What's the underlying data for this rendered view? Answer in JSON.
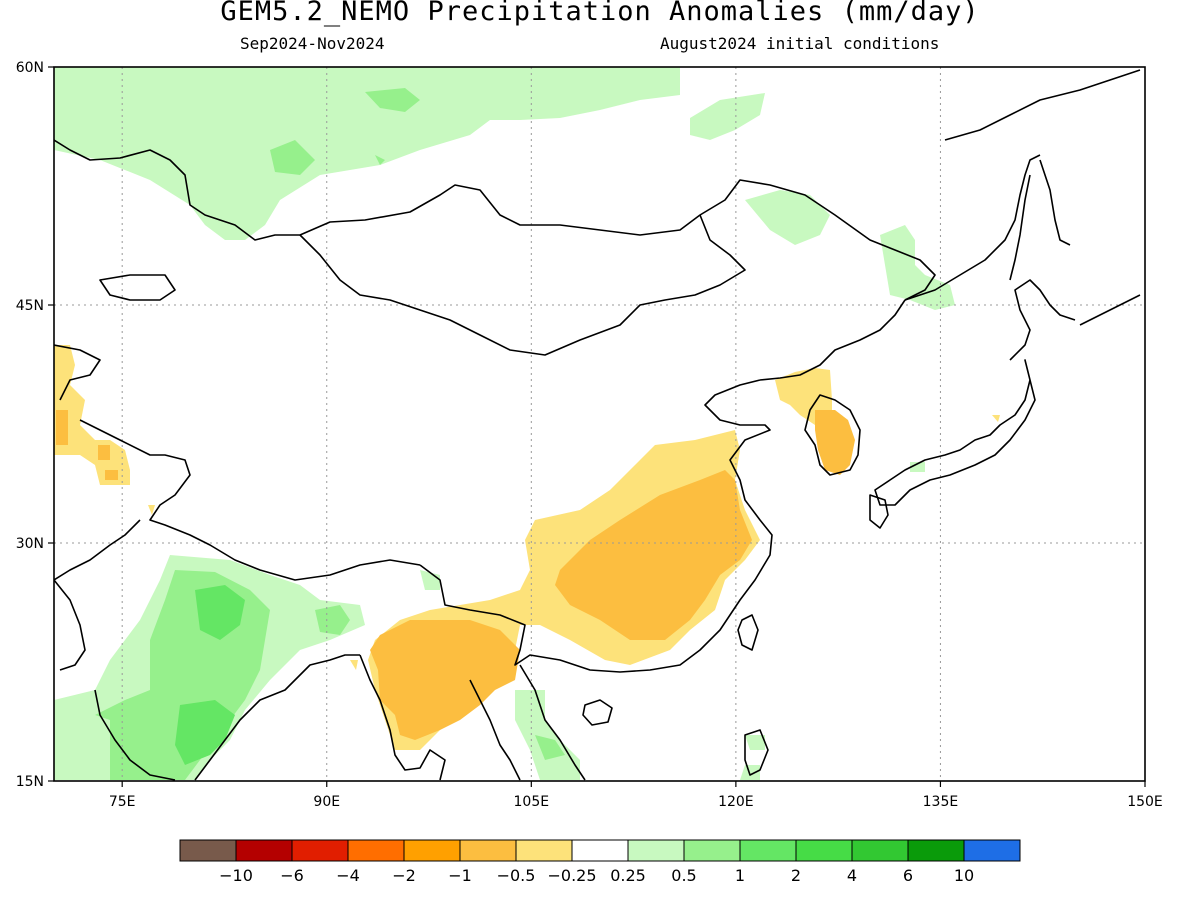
{
  "header": {
    "title": "GEM5.2_NEMO Precipitation Anomalies (mm/day)",
    "period": "Sep2024-Nov2024",
    "initial": "August2024 initial conditions"
  },
  "map": {
    "lon_range": [
      70,
      150
    ],
    "lat_range": [
      15,
      60
    ],
    "lon_ticks": [
      {
        "value": 75,
        "label": "75E"
      },
      {
        "value": 90,
        "label": "90E"
      },
      {
        "value": 105,
        "label": "105E"
      },
      {
        "value": 120,
        "label": "120E"
      },
      {
        "value": 135,
        "label": "135E"
      },
      {
        "value": 150,
        "label": "150E"
      }
    ],
    "lat_ticks": [
      {
        "value": 60,
        "label": "60N"
      },
      {
        "value": 45,
        "label": "45N"
      },
      {
        "value": 30,
        "label": "30N"
      },
      {
        "value": 15,
        "label": "15N"
      }
    ],
    "colors": {
      "pos_light": "#c8f9c0",
      "pos_mid": "#96f08c",
      "pos_strong": "#64e664",
      "neg_light": "#fde27a",
      "neg_mid": "#fcbe40",
      "coast": "#000000",
      "grid": "#999999"
    }
  },
  "legend": {
    "bins": [
      {
        "color": "#785a4b"
      },
      {
        "color": "#b40000"
      },
      {
        "color": "#e11e00"
      },
      {
        "color": "#ff6e00"
      },
      {
        "color": "#ffa000"
      },
      {
        "color": "#fcbe40"
      },
      {
        "color": "#fde27a"
      },
      {
        "color": "#ffffff"
      },
      {
        "color": "#c8f9c0"
      },
      {
        "color": "#96f08c"
      },
      {
        "color": "#64e664"
      },
      {
        "color": "#46dc46"
      },
      {
        "color": "#32c832"
      },
      {
        "color": "#0a9b0a"
      },
      {
        "color": "#1e6ee6"
      }
    ],
    "labels": [
      "−10",
      "−6",
      "−4",
      "−2",
      "−1",
      "−0.5",
      "−0.25",
      "0.25",
      "0.5",
      "1",
      "2",
      "4",
      "6",
      "10"
    ]
  }
}
